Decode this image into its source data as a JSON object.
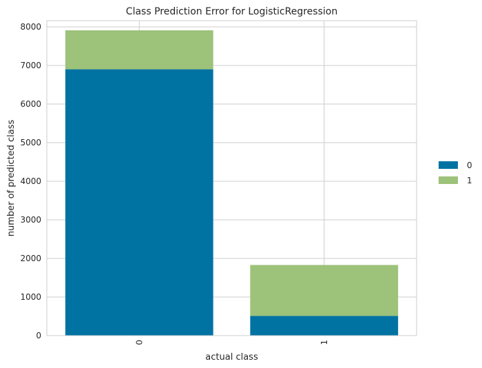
{
  "chart_data": {
    "type": "bar",
    "stacked": true,
    "title": "Class Prediction Error for LogisticRegression",
    "xlabel": "actual class",
    "ylabel": "number of predicted class",
    "categories": [
      "0",
      "1"
    ],
    "series": [
      {
        "name": "0",
        "values": [
          6900,
          510
        ],
        "color": "#0173a3"
      },
      {
        "name": "1",
        "values": [
          1010,
          1320
        ],
        "color": "#9dc279"
      }
    ],
    "ylim": [
      0,
      8000
    ],
    "yticks": [
      0,
      1000,
      2000,
      3000,
      4000,
      5000,
      6000,
      7000,
      8000
    ],
    "grid": true,
    "legend_position": "right",
    "x_tick_rotation": 90
  }
}
